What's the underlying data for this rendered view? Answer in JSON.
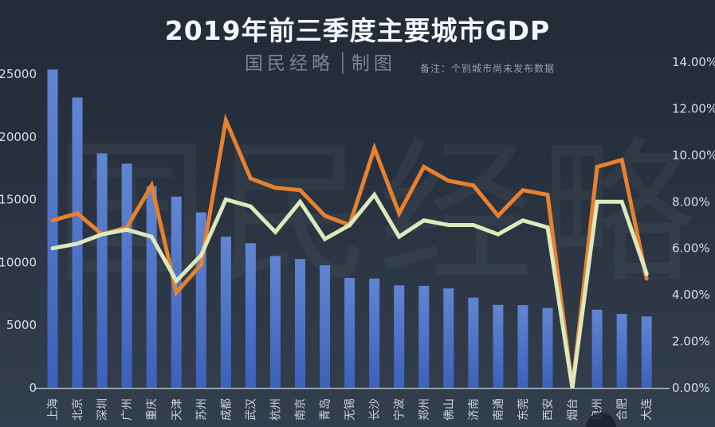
{
  "header": {
    "title": "2019年前三季度主要城市GDP",
    "watermark": "国民经略",
    "watermark_divider": "│",
    "watermark_suffix": "制图",
    "note": "备注：个别城市尚未发布数据"
  },
  "colors": {
    "background_top": "#232b37",
    "background_bottom": "#343f4e",
    "bar_top": "#6285d2",
    "bar_bottom": "#3c61ba",
    "orange_line": "#e8812f",
    "green_line": "#dce9bc",
    "axis_line": "#aab2bd",
    "axis_text": "#d7dde7"
  },
  "chart_data": {
    "type": "bar",
    "subtype": "combo-bar-with-two-lines",
    "title": "2019年前三季度主要城市GDP",
    "categories": [
      "上海",
      "北京",
      "深圳",
      "广州",
      "重庆",
      "天津",
      "苏州",
      "成都",
      "武汉",
      "杭州",
      "南京",
      "青岛",
      "无锡",
      "长沙",
      "宁波",
      "郑州",
      "佛山",
      "济南",
      "南通",
      "东莞",
      "西安",
      "烟台",
      "泉州",
      "合肥",
      "大连"
    ],
    "series": [
      {
        "name": "gdp-bar",
        "type": "bar",
        "axis": "left",
        "values": [
          25361,
          23130,
          18689,
          17869,
          16074,
          15243,
          13983,
          12047,
          11528,
          10512,
          10267,
          9770,
          8754,
          8714,
          8170,
          8130,
          7932,
          7189,
          6612,
          6592,
          6372,
          null,
          6233,
          5900,
          5700
        ]
      },
      {
        "name": "growth-line-orange",
        "type": "line",
        "axis": "right",
        "values": [
          7.2,
          7.5,
          6.6,
          6.9,
          8.7,
          4.1,
          5.3,
          11.5,
          9.0,
          8.6,
          8.5,
          7.4,
          7.0,
          10.3,
          7.5,
          9.5,
          8.9,
          8.7,
          7.4,
          8.5,
          8.3,
          0,
          9.5,
          9.8,
          4.7
        ]
      },
      {
        "name": "growth-line-green",
        "type": "line",
        "axis": "right",
        "values": [
          6.0,
          6.2,
          6.6,
          6.8,
          6.5,
          4.6,
          5.7,
          8.1,
          7.8,
          6.7,
          8.0,
          6.4,
          7.0,
          8.3,
          6.5,
          7.2,
          7.0,
          7.0,
          6.6,
          7.2,
          6.9,
          0,
          8.0,
          8.0,
          4.9
        ]
      }
    ],
    "left_axis": {
      "min": 0,
      "max": 25000,
      "ticks": [
        "25000",
        "20000",
        "15000",
        "10000",
        "5000",
        "0"
      ]
    },
    "right_axis": {
      "min": 0,
      "max": 14,
      "ticks": [
        "14.00%",
        "12.00%",
        "10.00%",
        "8.00%",
        "6.00%",
        "4.00%",
        "2.00%",
        "0.00%"
      ]
    },
    "grid": "off",
    "legend": "none",
    "note": "烟台 bar missing (data not published); both growth lines drop to 0 at 烟台"
  }
}
